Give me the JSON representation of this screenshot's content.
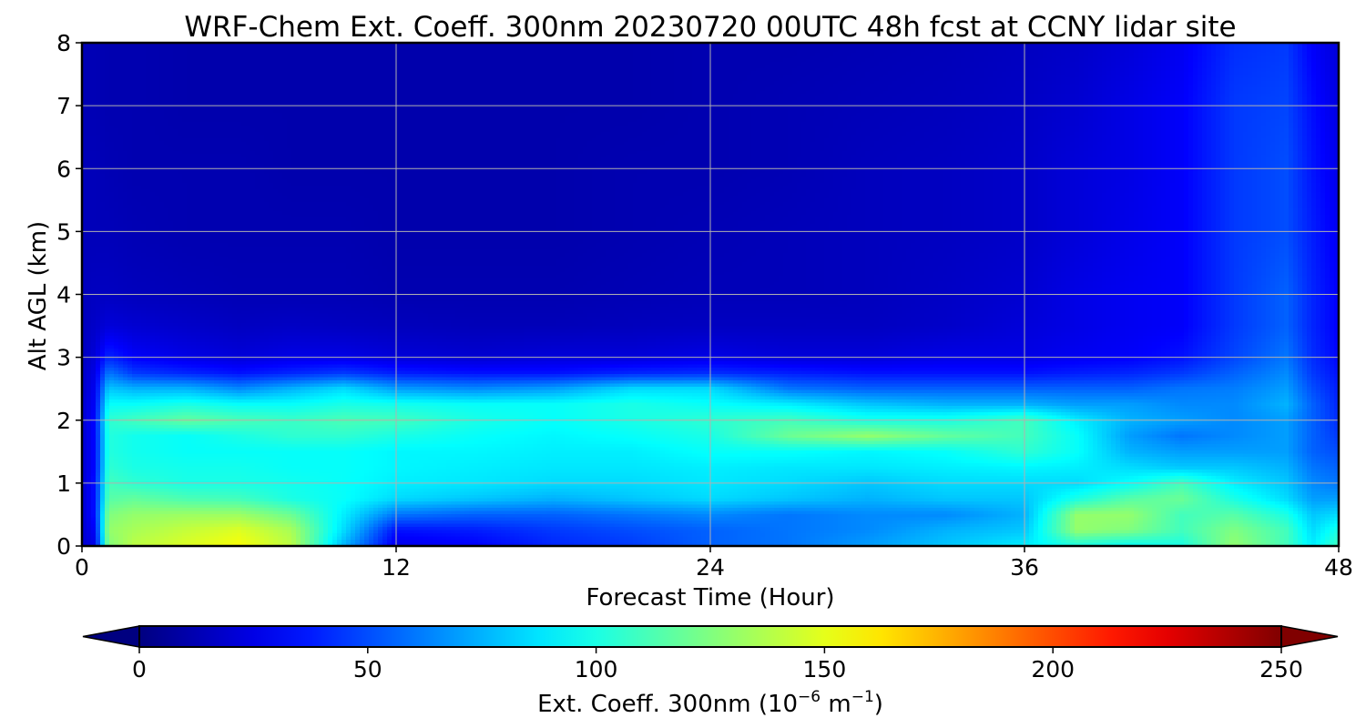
{
  "chart_data": {
    "type": "heatmap",
    "title": "WRF-Chem Ext. Coeff. 300nm  20230720 00UTC 48h fcst at CCNY lidar site",
    "xlabel": "Forecast Time (Hour)",
    "ylabel": "Alt AGL (km)",
    "xlim": [
      0,
      48
    ],
    "ylim": [
      0,
      8
    ],
    "x_ticks": [
      "0",
      "12",
      "24",
      "36",
      "48"
    ],
    "y_ticks": [
      "0",
      "1",
      "2",
      "3",
      "4",
      "5",
      "6",
      "7",
      "8"
    ],
    "grid": true,
    "colormap": "jet",
    "colorbar": {
      "label_prefix": "Ext. Coeff. 300nm  (10",
      "label_exp1": "−6",
      "label_mid": " m",
      "label_exp2": "−1",
      "label_suffix": ")",
      "range": [
        0,
        250
      ],
      "ticks": [
        "0",
        "50",
        "100",
        "150",
        "200",
        "250"
      ],
      "extend": "both",
      "orientation": "horizontal"
    },
    "x": [
      0,
      0.5,
      1,
      2,
      4,
      6,
      8,
      10,
      12,
      15,
      18,
      21,
      24,
      27,
      30,
      33,
      36,
      38,
      40,
      42,
      44,
      46,
      47,
      48
    ],
    "y": [
      0,
      0.25,
      0.5,
      0.75,
      1,
      1.25,
      1.5,
      1.75,
      2,
      2.25,
      2.5,
      2.75,
      3,
      3.5,
      4,
      5,
      6,
      7,
      8
    ],
    "z": [
      [
        20,
        25,
        125,
        140,
        148,
        155,
        140,
        75,
        25,
        30,
        40,
        45,
        55,
        60,
        70,
        80,
        90,
        100,
        95,
        100,
        130,
        110,
        90,
        110
      ],
      [
        20,
        30,
        130,
        135,
        142,
        148,
        135,
        85,
        35,
        38,
        45,
        50,
        55,
        60,
        65,
        75,
        80,
        130,
        125,
        110,
        125,
        110,
        85,
        100
      ],
      [
        20,
        35,
        125,
        130,
        132,
        132,
        120,
        90,
        60,
        55,
        55,
        60,
        65,
        60,
        65,
        65,
        75,
        130,
        130,
        110,
        115,
        100,
        80,
        85
      ],
      [
        20,
        35,
        115,
        118,
        112,
        110,
        100,
        95,
        85,
        80,
        75,
        80,
        85,
        80,
        75,
        80,
        80,
        100,
        115,
        120,
        100,
        85,
        70,
        70
      ],
      [
        20,
        35,
        110,
        105,
        100,
        100,
        98,
        95,
        90,
        88,
        85,
        85,
        88,
        85,
        80,
        85,
        85,
        85,
        95,
        110,
        90,
        80,
        65,
        60
      ],
      [
        20,
        32,
        105,
        100,
        98,
        98,
        95,
        95,
        92,
        90,
        88,
        88,
        90,
        88,
        88,
        90,
        92,
        90,
        85,
        80,
        80,
        75,
        60,
        55
      ],
      [
        20,
        32,
        102,
        98,
        95,
        95,
        95,
        95,
        92,
        92,
        90,
        90,
        95,
        95,
        92,
        95,
        105,
        95,
        75,
        70,
        70,
        70,
        55,
        50
      ],
      [
        20,
        32,
        102,
        98,
        95,
        100,
        105,
        105,
        100,
        95,
        92,
        95,
        100,
        120,
        130,
        118,
        110,
        95,
        70,
        60,
        65,
        70,
        55,
        45
      ],
      [
        20,
        32,
        105,
        110,
        118,
        112,
        108,
        112,
        110,
        100,
        95,
        100,
        105,
        110,
        100,
        100,
        110,
        90,
        75,
        70,
        65,
        70,
        55,
        42
      ],
      [
        20,
        30,
        95,
        95,
        100,
        95,
        95,
        100,
        98,
        95,
        95,
        100,
        95,
        90,
        80,
        75,
        75,
        70,
        70,
        65,
        65,
        75,
        55,
        40
      ],
      [
        18,
        28,
        80,
        75,
        75,
        65,
        75,
        85,
        70,
        65,
        70,
        85,
        85,
        60,
        55,
        55,
        55,
        55,
        55,
        60,
        62,
        70,
        50,
        38
      ],
      [
        18,
        25,
        60,
        45,
        40,
        35,
        40,
        45,
        38,
        35,
        35,
        40,
        42,
        38,
        35,
        35,
        35,
        38,
        40,
        45,
        55,
        65,
        45,
        35
      ],
      [
        16,
        22,
        40,
        30,
        25,
        22,
        25,
        25,
        22,
        20,
        22,
        22,
        25,
        22,
        22,
        25,
        25,
        28,
        30,
        35,
        48,
        60,
        42,
        32
      ],
      [
        15,
        18,
        22,
        20,
        18,
        16,
        17,
        16,
        15,
        14,
        14,
        15,
        16,
        16,
        16,
        18,
        22,
        25,
        28,
        30,
        45,
        55,
        40,
        30
      ],
      [
        15,
        16,
        16,
        15,
        14,
        13,
        13,
        13,
        12,
        12,
        12,
        13,
        14,
        14,
        15,
        17,
        20,
        25,
        28,
        30,
        45,
        55,
        40,
        30
      ],
      [
        14,
        14,
        14,
        13,
        12,
        12,
        12,
        12,
        11,
        11,
        11,
        12,
        13,
        14,
        15,
        16,
        18,
        22,
        26,
        30,
        45,
        50,
        38,
        28
      ],
      [
        14,
        14,
        13,
        12,
        12,
        12,
        11,
        11,
        11,
        11,
        11,
        12,
        12,
        13,
        15,
        16,
        18,
        22,
        25,
        30,
        45,
        50,
        36,
        26
      ],
      [
        13,
        13,
        12,
        12,
        11,
        11,
        11,
        11,
        11,
        11,
        11,
        11,
        12,
        13,
        14,
        15,
        17,
        20,
        25,
        30,
        45,
        48,
        34,
        24
      ],
      [
        13,
        13,
        12,
        12,
        11,
        11,
        11,
        11,
        11,
        11,
        11,
        11,
        12,
        12,
        13,
        14,
        16,
        18,
        22,
        28,
        42,
        45,
        30,
        22
      ]
    ]
  }
}
